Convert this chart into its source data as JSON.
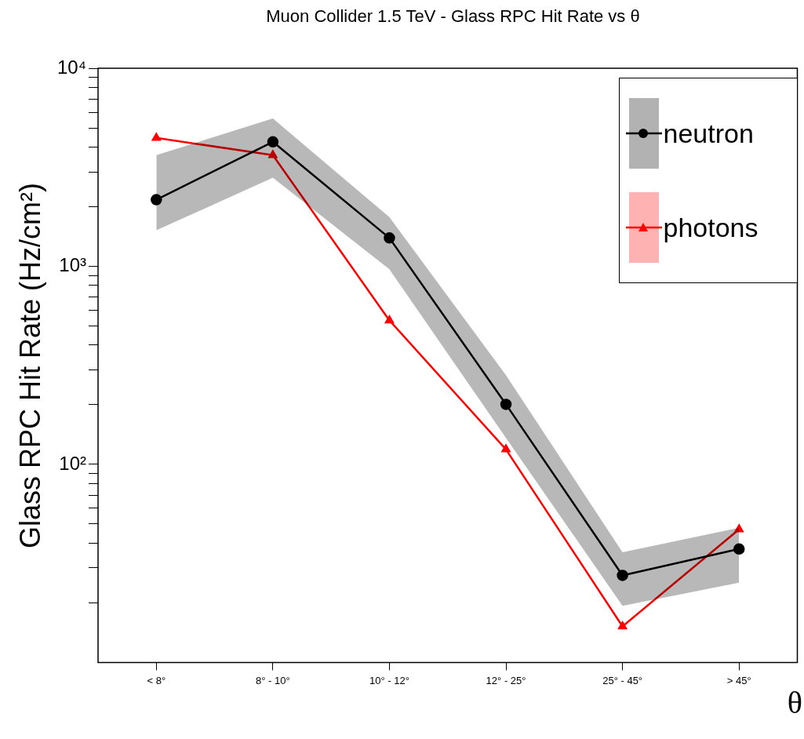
{
  "chart_data": {
    "type": "line",
    "title": "Muon Collider 1.5 TeV - Glass RPC Hit Rate vs    θ",
    "xlabel": "θ",
    "ylabel": "Glass RPC Hit Rate (Hz/cm²)",
    "categories": [
      "< 8°",
      "8° - 10°",
      "10° - 12°",
      "12° - 25°",
      "25° - 45°",
      "> 45°"
    ],
    "series": [
      {
        "name": "neutron",
        "color": "#000000",
        "marker": "circle",
        "values": [
          2170,
          4250,
          1390,
          201,
          27.5,
          37.4
        ],
        "lower": [
          1520,
          2800,
          965,
          136,
          19.3,
          25.3
        ],
        "upper": [
          3640,
          5580,
          1770,
          282,
          36,
          47.9
        ]
      },
      {
        "name": "photons",
        "color": "#ff0000",
        "marker": "triangle",
        "values": [
          4450,
          3640,
          533,
          119,
          15.2,
          47
        ]
      }
    ],
    "log": "y",
    "ylim": [
      10,
      10000
    ],
    "yticks": [
      {
        "value": 20,
        "label": null
      },
      {
        "value": 30,
        "label": null
      },
      {
        "value": 40,
        "label": null
      },
      {
        "value": 50,
        "label": null
      },
      {
        "value": 60,
        "label": null
      },
      {
        "value": 70,
        "label": null
      },
      {
        "value": 80,
        "label": null
      },
      {
        "value": 90,
        "label": null
      },
      {
        "value": 100,
        "label": "10²"
      },
      {
        "value": 200,
        "label": null
      },
      {
        "value": 300,
        "label": null
      },
      {
        "value": 400,
        "label": null
      },
      {
        "value": 500,
        "label": null
      },
      {
        "value": 600,
        "label": null
      },
      {
        "value": 700,
        "label": null
      },
      {
        "value": 800,
        "label": null
      },
      {
        "value": 900,
        "label": null
      },
      {
        "value": 1000,
        "label": "10³"
      },
      {
        "value": 2000,
        "label": null
      },
      {
        "value": 3000,
        "label": null
      },
      {
        "value": 4000,
        "label": null
      },
      {
        "value": 5000,
        "label": null
      },
      {
        "value": 6000,
        "label": null
      },
      {
        "value": 7000,
        "label": null
      },
      {
        "value": 8000,
        "label": null
      },
      {
        "value": 9000,
        "label": null
      },
      {
        "value": 10000,
        "label": "10⁴"
      }
    ],
    "legend": "top right"
  }
}
